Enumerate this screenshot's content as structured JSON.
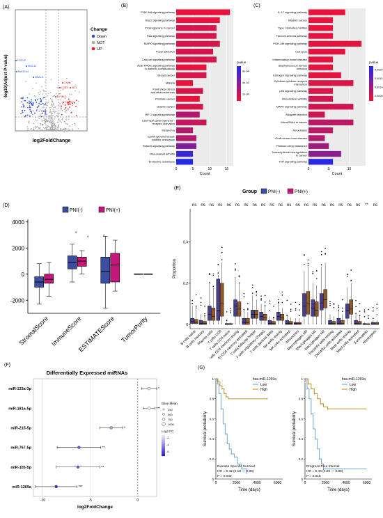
{
  "colors": {
    "down": "#2b4fd6",
    "not": "#a9a9a9",
    "up": "#e31a1c",
    "pni_neg": "#3a4fa0",
    "pni_pos": "#c2187a",
    "ksurv_low": "#5b9bd5",
    "ksurv_high": "#b8860b"
  },
  "panels": {
    "A": {
      "label": "(A)",
      "ylabel": "-log10(Adjust P-value)",
      "xlabel": "log2FoldChange",
      "legend_title": "Change",
      "legend": [
        "Down",
        "NOT",
        "UP"
      ],
      "genes_down": [
        "FDCSP",
        "MUC13",
        "MAGEA4",
        "DNALI1"
      ],
      "genes_up": [
        "CNN1",
        "LGR5",
        "WT1",
        "CYYR1",
        "CRTAC1"
      ]
    },
    "B": {
      "label": "(B)",
      "xlabel": "Count",
      "legend_title": "pvalue",
      "legend_ticks": [
        "2e-04",
        "4e-04",
        "6e-04"
      ]
    },
    "C": {
      "label": "(C)",
      "xlabel": "Count",
      "legend_title": "pvalue",
      "legend_ticks": [
        "0.0005",
        "0.0010",
        "0.0015",
        "0.0020"
      ]
    },
    "D": {
      "label": "(D)",
      "legend": [
        "PNI(-)",
        "PNI(+)"
      ]
    },
    "E": {
      "label": "(E)",
      "group_title": "Group",
      "legend": [
        "PNI(-)",
        "PNI(+)"
      ],
      "ylabel": "Proportion"
    },
    "F": {
      "label": "(F)",
      "title": "Differentially Expressed miRNAs",
      "xlabel": "log2FoldChange",
      "size_title": "Base Mean",
      "size_ticks": [
        "250",
        "500",
        "750",
        "1000"
      ],
      "color_title": "Log2 FC",
      "color_ticks": [
        "-2",
        "-4",
        "-6"
      ]
    },
    "G": {
      "label": "(G)",
      "ylabel": "Survival probability",
      "xlabel": "Time (days)",
      "strata_title": "hsa-miR-1269a",
      "legend": [
        "Low",
        "High"
      ]
    }
  },
  "chart_data": [
    {
      "panel": "A",
      "type": "scatter",
      "xlabel": "log2FoldChange",
      "ylabel": "-log10(Adjust P-value)",
      "legend": [
        "Down",
        "NOT",
        "UP"
      ]
    },
    {
      "panel": "B",
      "type": "bar",
      "orientation": "horizontal",
      "xlabel": "Count",
      "xticks": [
        0,
        5,
        10,
        15
      ],
      "xlim": [
        0,
        17
      ],
      "categories": [
        "PI3K-Akt signaling pathway",
        "Rap1 signaling pathway",
        "Proteoglycans in cancer",
        "Ras signaling pathway",
        "MAPK signaling pathway",
        "Focal adhesion",
        "Calcium signaling pathway",
        "AGE-RAGE signaling pathway in diabetic complications",
        "Breast cancer",
        "Malaria",
        "Fluid shear stress and atherosclerosis",
        "Prostate cancer",
        "Gastric cancer",
        "HIF-1 signaling pathway",
        "Chemical carcinogenesis - receptor activation",
        "Melanoma",
        "EGFR tyrosine kinase inhibitor resistance",
        "Relaxin signaling pathway",
        "Rheumatoid arthritis",
        "Endocrine resistance"
      ],
      "values": [
        16,
        13,
        12,
        12,
        13,
        11,
        12,
        9,
        9,
        5,
        8,
        7,
        8,
        7,
        9,
        5,
        6,
        6,
        5,
        5
      ],
      "pvalues": [
        5e-05,
        5e-05,
        0.0001,
        0.0001,
        0.0001,
        0.0001,
        0.0001,
        5e-05,
        0.0001,
        5e-05,
        0.0001,
        5e-05,
        0.0001,
        0.0002,
        0.00015,
        0.0002,
        0.0002,
        0.00035,
        0.00055,
        0.0006
      ]
    },
    {
      "panel": "C",
      "type": "bar",
      "orientation": "horizontal",
      "xlabel": "Count",
      "xticks": [
        0,
        5,
        10
      ],
      "xlim": [
        0,
        14
      ],
      "categories": [
        "IL-17 signaling pathway",
        "Bladder cancer",
        "Type I diabetes mellitus",
        "Fanconi anemia pathway",
        "PI3K-Akt signaling pathway",
        "Cell cycle",
        "Inflammatory bowel disease",
        "Staphylococcus aureus infection",
        "Estrogen signaling pathway",
        "Cytokine-cytokine receptor interaction",
        "p53 signaling pathway",
        "Rheumatoid arthritis",
        "MAPK signaling pathway",
        "Allograft rejection",
        "MicroRNAs in cancer",
        "Amoebiasis",
        "Graft-versus-host disease",
        "Platinum drug resistance",
        "Transcriptional misregulation in cancer",
        "TNF signaling pathway"
      ],
      "values": [
        9,
        6,
        6,
        6,
        13,
        9,
        6,
        6,
        8,
        11,
        6,
        6,
        11,
        4,
        11,
        6,
        4,
        5,
        8,
        6
      ],
      "pvalues": [
        5e-05,
        5e-05,
        5e-05,
        0.0001,
        0.0001,
        0.0001,
        0.0001,
        0.0001,
        0.0001,
        0.0002,
        0.0002,
        0.0003,
        0.0003,
        0.0003,
        0.0005,
        0.0005,
        0.0006,
        0.0008,
        0.001,
        0.002
      ]
    },
    {
      "panel": "D",
      "type": "box",
      "yticks": [
        -2000,
        0,
        2000,
        4000
      ],
      "ylim": [
        -3000,
        4200
      ],
      "categories": [
        "StromalScore",
        "ImmuneScore",
        "ESTIMATEScore",
        "TumorPurity"
      ],
      "series": [
        {
          "name": "PNI(-)",
          "stats": [
            [
              -2300,
              -1000,
              -600,
              -200,
              800
            ],
            [
              -600,
              400,
              900,
              1400,
              2300
            ],
            [
              -2600,
              -700,
              200,
              1300,
              2900
            ],
            [
              0,
              0,
              0,
              0,
              0
            ]
          ]
        },
        {
          "name": "PNI(+)",
          "stats": [
            [
              -1700,
              -700,
              -400,
              0,
              900
            ],
            [
              0,
              600,
              1000,
              1300,
              1800
            ],
            [
              -1300,
              -600,
              700,
              1600,
              2600
            ],
            [
              0,
              0,
              0,
              0,
              0
            ]
          ]
        }
      ]
    },
    {
      "panel": "E",
      "type": "box",
      "ylabel": "Proportion",
      "yticks": [
        0,
        0.2,
        0.4
      ],
      "ylim": [
        -0.02,
        0.56
      ],
      "categories": [
        "B cells naive",
        "B cells memory",
        "Plasma cells",
        "T cells CD8",
        "T cells CD4 naive",
        "T cells CD4 memory resting",
        "T cells CD4 memory activated",
        "T cells follicular helper",
        "T cells regulatory (Tregs)",
        "T cells gamma delta",
        "NK cells resting",
        "NK cells activated",
        "Monocytes",
        "Macrophages M0",
        "Macrophages M1",
        "Macrophages M2",
        "Dendritic cells resting",
        "Dendritic cells activated",
        "Mast cells resting",
        "Mast cells activated",
        "Eosinophils",
        "Neutrophils"
      ],
      "significance": [
        "ns",
        "ns",
        "ns",
        "ns",
        "ns",
        "ns",
        "ns",
        "ns",
        "ns",
        "ns",
        "ns",
        "ns",
        "ns",
        "ns",
        "ns",
        "ns",
        "ns",
        "ns",
        "ns",
        "ns",
        "**",
        "ns"
      ],
      "series": [
        {
          "name": "PNI(-)",
          "stats": [
            [
              0,
              0.005,
              0.015,
              0.03,
              0.09
            ],
            [
              0,
              0,
              0.005,
              0.02,
              0.05
            ],
            [
              0,
              0.02,
              0.05,
              0.09,
              0.2
            ],
            [
              0,
              0.02,
              0.07,
              0.22,
              0.24
            ],
            [
              0,
              0,
              0,
              0.005,
              0.01
            ],
            [
              0,
              0.04,
              0.09,
              0.12,
              0.23
            ],
            [
              0,
              0,
              0.01,
              0.03,
              0.07
            ],
            [
              0,
              0.03,
              0.05,
              0.07,
              0.14
            ],
            [
              0,
              0.02,
              0.04,
              0.06,
              0.1
            ],
            [
              0,
              0,
              0.005,
              0.02,
              0.04
            ],
            [
              0,
              0.02,
              0.04,
              0.06,
              0.1
            ],
            [
              0,
              0,
              0.005,
              0.02,
              0.04
            ],
            [
              0,
              0,
              0.005,
              0.01,
              0.03
            ],
            [
              0,
              0.04,
              0.09,
              0.15,
              0.26
            ],
            [
              0,
              0.04,
              0.08,
              0.12,
              0.2
            ],
            [
              0,
              0.07,
              0.1,
              0.15,
              0.28
            ],
            [
              0,
              0,
              0.005,
              0.02,
              0.05
            ],
            [
              0,
              0,
              0.005,
              0.03,
              0.07
            ],
            [
              0,
              0.03,
              0.07,
              0.1,
              0.18
            ],
            [
              0,
              0,
              0.005,
              0.02,
              0.05
            ],
            [
              0,
              0,
              0,
              0.005,
              0.01
            ],
            [
              0,
              0,
              0.003,
              0.01,
              0.02
            ]
          ]
        },
        {
          "name": "PNI(+)",
          "stats": [
            [
              0,
              0.004,
              0.01,
              0.025,
              0.07
            ],
            [
              0,
              0,
              0.005,
              0.015,
              0.04
            ],
            [
              0,
              0.02,
              0.04,
              0.08,
              0.18
            ],
            [
              0,
              0.04,
              0.1,
              0.2,
              0.3
            ],
            [
              0,
              0,
              0,
              0.005,
              0.01
            ],
            [
              0,
              0.04,
              0.08,
              0.11,
              0.2
            ],
            [
              0,
              0,
              0.01,
              0.03,
              0.06
            ],
            [
              0,
              0.03,
              0.05,
              0.07,
              0.12
            ],
            [
              0,
              0.02,
              0.035,
              0.05,
              0.09
            ],
            [
              0,
              0,
              0.005,
              0.015,
              0.03
            ],
            [
              0,
              0.02,
              0.035,
              0.05,
              0.08
            ],
            [
              0,
              0,
              0.005,
              0.015,
              0.035
            ],
            [
              0,
              0,
              0.005,
              0.01,
              0.03
            ],
            [
              0,
              0.05,
              0.1,
              0.16,
              0.28
            ],
            [
              0,
              0.04,
              0.07,
              0.11,
              0.19
            ],
            [
              0,
              0.08,
              0.12,
              0.17,
              0.3
            ],
            [
              0,
              0,
              0.005,
              0.015,
              0.04
            ],
            [
              0,
              0,
              0.005,
              0.02,
              0.05
            ],
            [
              0,
              0.05,
              0.08,
              0.12,
              0.2
            ],
            [
              0,
              0,
              0.004,
              0.015,
              0.04
            ],
            [
              0,
              0,
              0,
              0.004,
              0.01
            ],
            [
              0,
              0,
              0.003,
              0.01,
              0.02
            ]
          ]
        }
      ]
    },
    {
      "panel": "F",
      "type": "dot",
      "xlabel": "log2FoldChange",
      "xticks": [
        -10,
        -5,
        0
      ],
      "xlim": [
        -11,
        2
      ],
      "categories": [
        "miR-133a-3p",
        "miR-181a-5p",
        "miR-215-5p",
        "miR-767-5p",
        "miR-105-5p",
        "miR-1269a"
      ],
      "values": [
        1.2,
        1.2,
        -2.8,
        -6.2,
        -6.3,
        -8.6
      ],
      "ci": [
        [
          0.4,
          2.0
        ],
        [
          0.6,
          1.8
        ],
        [
          -4.0,
          -1.6
        ],
        [
          -8.5,
          -3.9
        ],
        [
          -8.6,
          -4.0
        ],
        [
          -10.8,
          -6.4
        ]
      ],
      "stars": [
        "*",
        "***",
        "*",
        "**",
        "**",
        "***"
      ]
    },
    {
      "panel": "G",
      "type": "line",
      "subtype": "kaplan-meier",
      "xlabel": "Time (days)",
      "ylabel": "Survival probability",
      "strata_title": "hsa-miR-1269a",
      "plots": [
        {
          "title": "Disease Specific Survival",
          "hr": "HR = 0.42 (0.18 — 0.96)",
          "p": "P = 0.040",
          "xticks": [
            0,
            2000,
            4000,
            6000
          ],
          "yticks": [
            0,
            0.2,
            0.4,
            0.6,
            0.8,
            1
          ],
          "series": [
            {
              "name": "Low",
              "x": [
                0,
                150,
                300,
                500,
                700,
                900,
                1100,
                1300,
                1500,
                1800,
                2100,
                2500,
                3000
              ],
              "y": [
                1,
                0.95,
                0.85,
                0.7,
                0.55,
                0.45,
                0.35,
                0.3,
                0.25,
                0.22,
                0.15,
                0.1,
                0.05
              ]
            },
            {
              "name": "High",
              "x": [
                0,
                200,
                400,
                600,
                800,
                1000,
                1200,
                5000
              ],
              "y": [
                1,
                0.97,
                0.93,
                0.9,
                0.85,
                0.82,
                0.8,
                0.8
              ]
            }
          ]
        },
        {
          "title": "Progress Free Interval",
          "hr": "HR = 0.40 (0.25 — 0.86)",
          "p": "P = 0.015",
          "xticks": [
            0,
            2000,
            4000,
            6000
          ],
          "yticks": [
            0,
            0.2,
            0.4,
            0.6,
            0.8,
            1
          ],
          "series": [
            {
              "name": "Low",
              "x": [
                0,
                200,
                400,
                600,
                800,
                1000,
                1200,
                1400,
                1600,
                1800,
                6000
              ],
              "y": [
                1,
                0.9,
                0.8,
                0.65,
                0.5,
                0.4,
                0.3,
                0.2,
                0.15,
                0.1,
                0.1
              ]
            },
            {
              "name": "High",
              "x": [
                0,
                300,
                600,
                900,
                1200,
                1500,
                1800,
                2200,
                6000
              ],
              "y": [
                1,
                0.95,
                0.9,
                0.85,
                0.8,
                0.75,
                0.72,
                0.7,
                0.7
              ]
            }
          ]
        }
      ]
    }
  ]
}
